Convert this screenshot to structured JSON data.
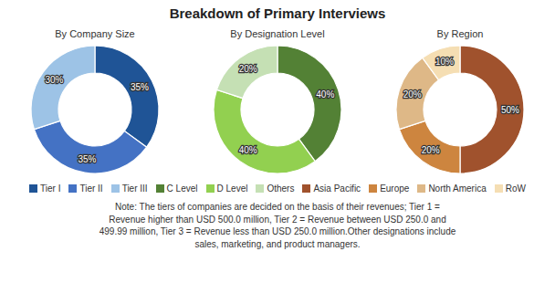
{
  "title": "Breakdown of Primary Interviews",
  "note": "Note: The tiers of companies are decided on the basis of their revenues; Tier 1 =\nRevenue higher than USD 500.0 million, Tier 2 = Revenue between USD 250.0 and\n499.99 million, Tier 3 = Revenue less than USD 250.0 million.Other designations include\nsales, marketing, and product managers.",
  "chart_data": [
    {
      "type": "pie",
      "title": "By Company Size",
      "categories": [
        "Tier I",
        "Tier II",
        "Tier III"
      ],
      "values": [
        35,
        35,
        30
      ],
      "value_labels": [
        "35%",
        "35%",
        "30%"
      ],
      "colors": [
        "#1f5496",
        "#4472c4",
        "#9dc3e6"
      ]
    },
    {
      "type": "pie",
      "title": "By Designation Level",
      "categories": [
        "C Level",
        "D Level",
        "Others"
      ],
      "values": [
        40,
        40,
        20
      ],
      "value_labels": [
        "40%",
        "40%",
        "20%"
      ],
      "colors": [
        "#538135",
        "#92d050",
        "#c5e0b4"
      ]
    },
    {
      "type": "pie",
      "title": "By Region",
      "categories": [
        "Asia Pacific",
        "Europe",
        "North America",
        "RoW"
      ],
      "values": [
        50,
        20,
        20,
        10
      ],
      "value_labels": [
        "50%",
        "20%",
        "20%",
        "10%"
      ],
      "colors": [
        "#a0522d",
        "#cd853f",
        "#deb887",
        "#f5deb3"
      ]
    }
  ]
}
